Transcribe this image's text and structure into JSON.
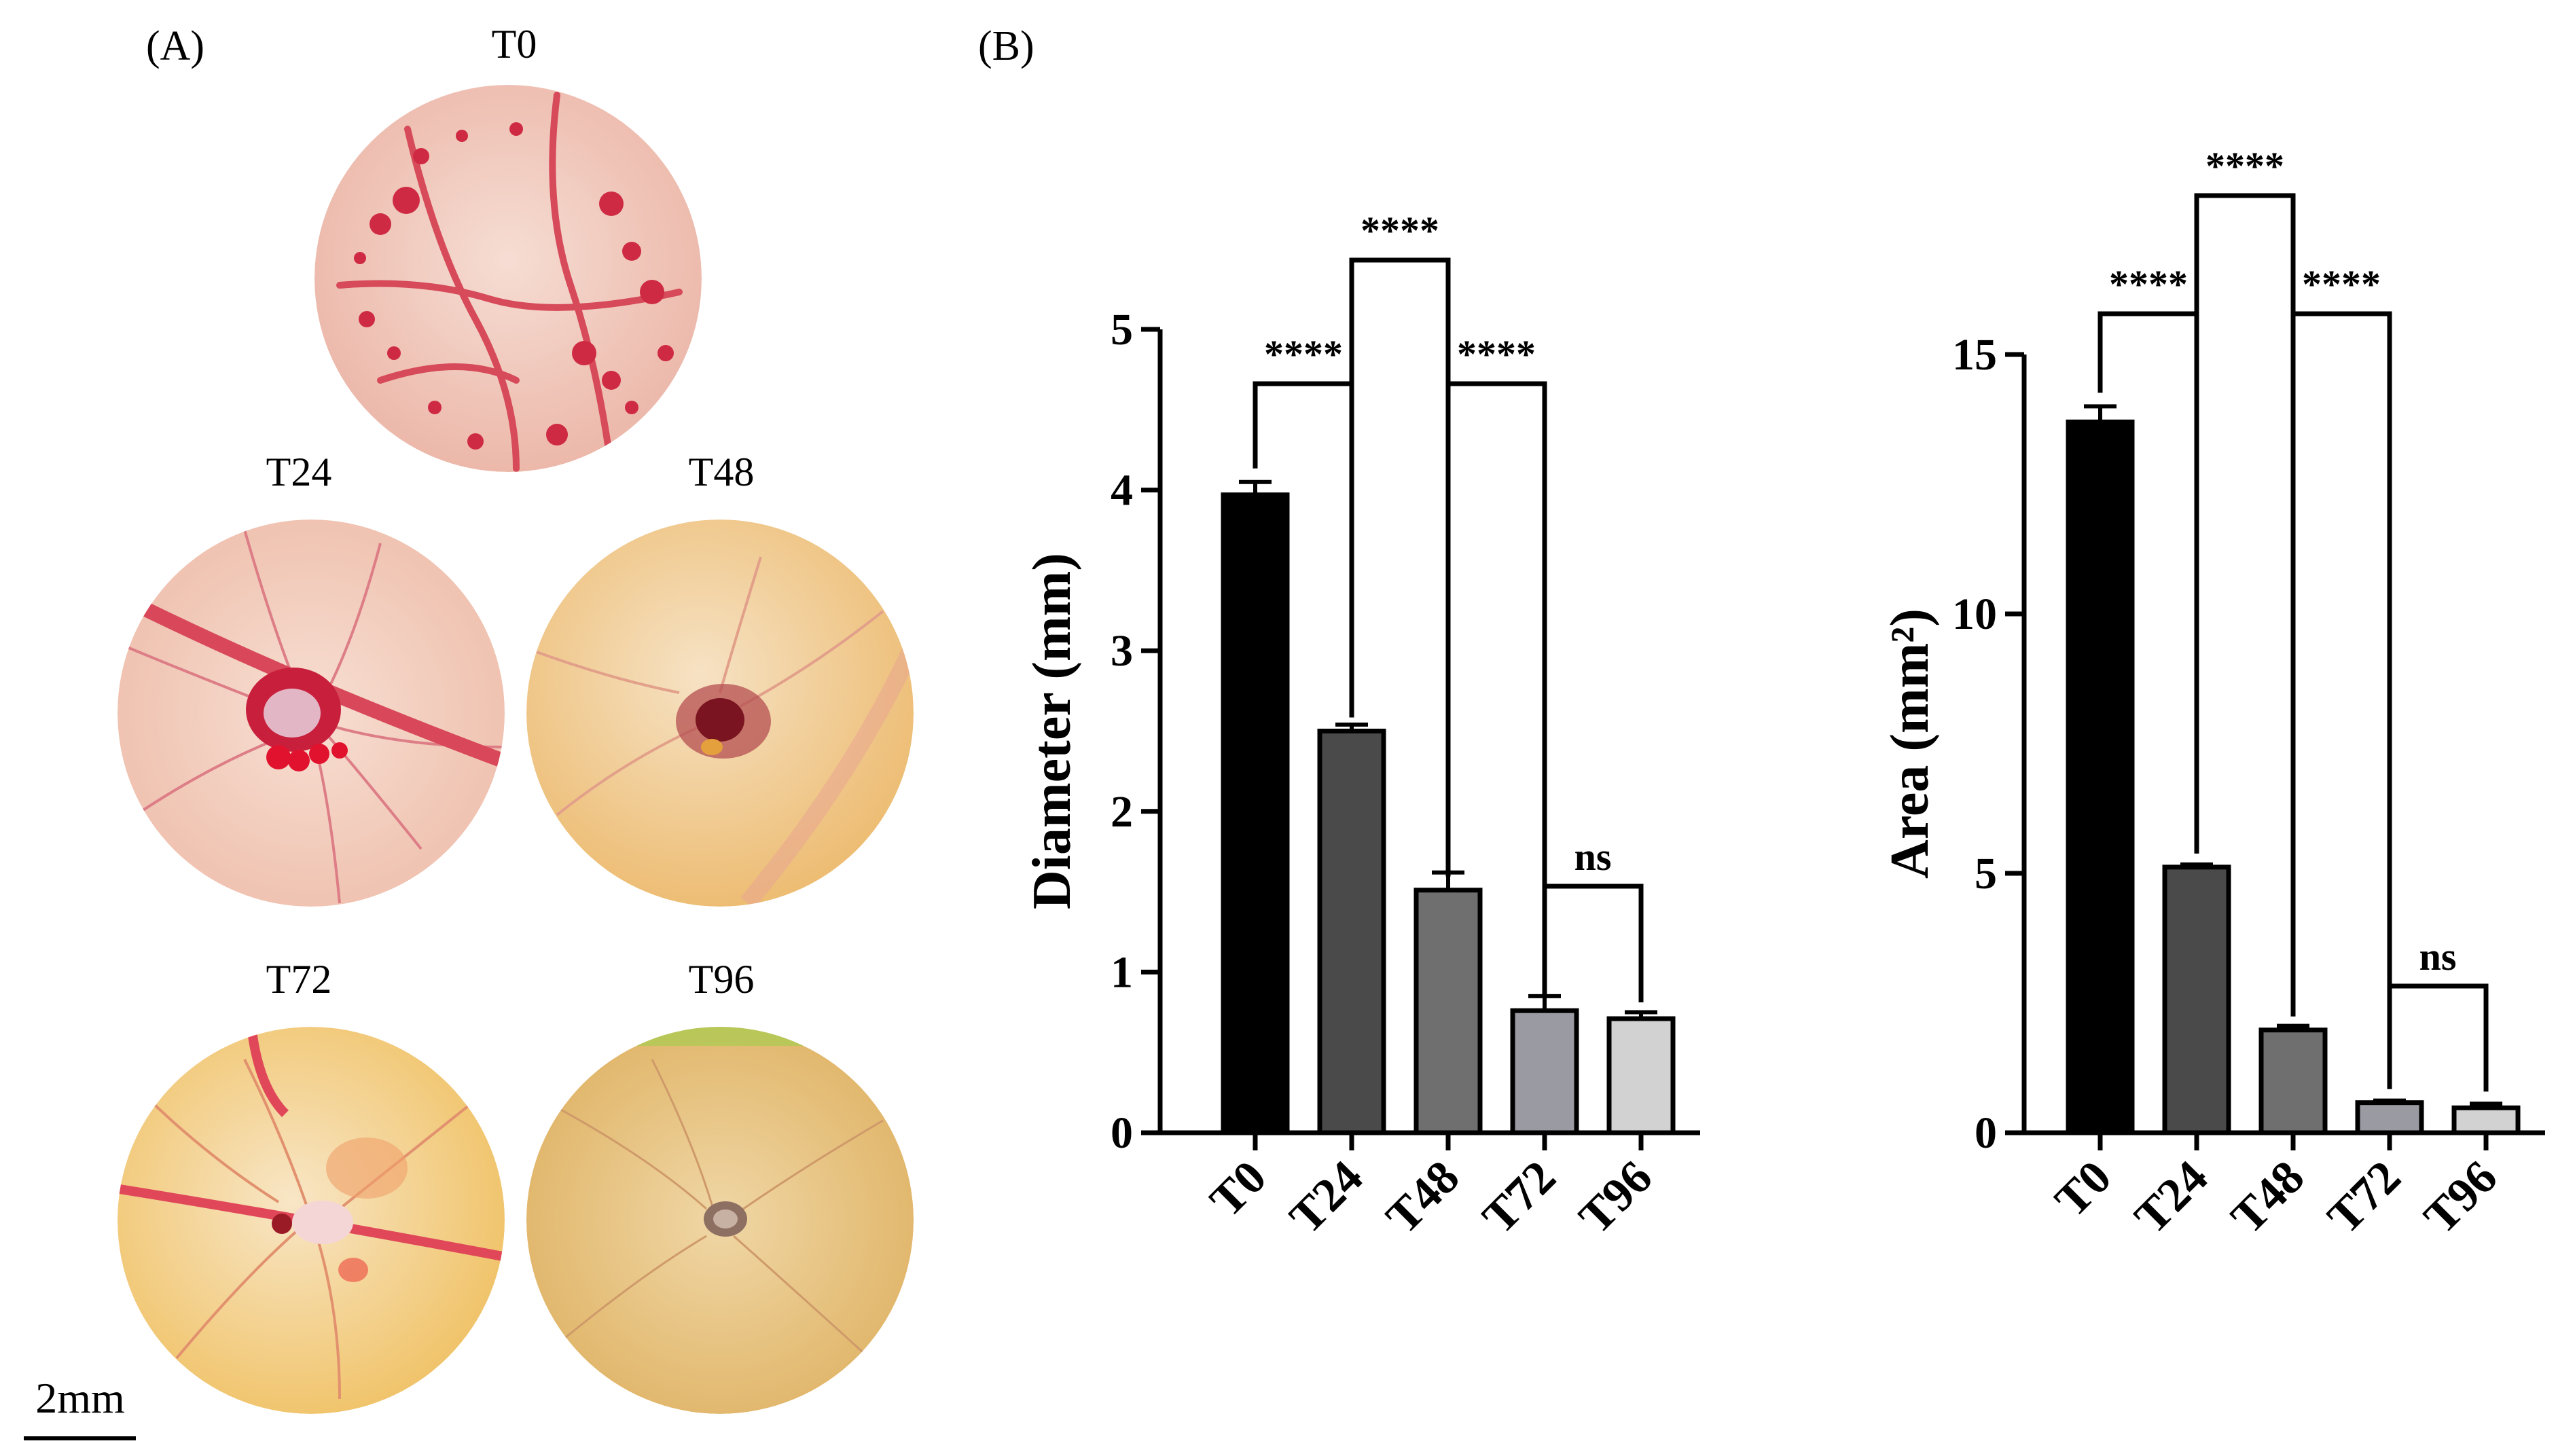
{
  "panels": {
    "a_label": "(A)",
    "b_label": "(B)"
  },
  "photos": [
    {
      "label": "T0",
      "palette": {
        "bg": "#f3cfc3",
        "vessel": "#d2324a"
      }
    },
    {
      "label": "T24",
      "palette": {
        "bg": "#f4d4c4",
        "vessel": "#db3d55"
      }
    },
    {
      "label": "T48",
      "palette": {
        "bg": "#f1d19c",
        "vessel": "#cf6b5c"
      }
    },
    {
      "label": "T72",
      "palette": {
        "bg": "#f3d38c",
        "vessel": "#e0433f"
      }
    },
    {
      "label": "T96",
      "palette": {
        "bg": "#e8c583",
        "vessel": "#c9a070"
      }
    }
  ],
  "scale_bar": {
    "label": "2mm"
  },
  "chart_data": [
    {
      "type": "bar",
      "categories": [
        "T0",
        "T24",
        "T48",
        "T72",
        "T96"
      ],
      "values": [
        3.97,
        2.5,
        1.51,
        0.76,
        0.71
      ],
      "errors": [
        0.08,
        0.04,
        0.11,
        0.09,
        0.04
      ],
      "colors": [
        "#000000",
        "#4a4a4a",
        "#6f6f6f",
        "#9a9aa2",
        "#d2d2d2"
      ],
      "ylabel": "Diameter (mm)",
      "ylim": [
        0,
        5
      ],
      "yticks": [
        "0",
        "1",
        "2",
        "3",
        "4",
        "5"
      ],
      "comparisons": [
        {
          "from": 0,
          "to": 1,
          "label": "****"
        },
        {
          "from": 1,
          "to": 2,
          "label": "****"
        },
        {
          "from": 2,
          "to": 3,
          "label": "****"
        },
        {
          "from": 3,
          "to": 4,
          "label": "ns"
        }
      ]
    },
    {
      "type": "bar",
      "categories": [
        "T0",
        "T24",
        "T48",
        "T72",
        "T96"
      ],
      "values": [
        13.7,
        5.12,
        1.98,
        0.58,
        0.48
      ],
      "errors": [
        0.3,
        0.05,
        0.08,
        0.04,
        0.08
      ],
      "colors": [
        "#000000",
        "#4a4a4a",
        "#6f6f6f",
        "#9a9aa2",
        "#d2d2d2"
      ],
      "ylabel": "Area (mm²)",
      "ylim": [
        0,
        15
      ],
      "yticks": [
        "0",
        "5",
        "10",
        "15"
      ],
      "comparisons": [
        {
          "from": 0,
          "to": 1,
          "label": "****"
        },
        {
          "from": 1,
          "to": 2,
          "label": "****"
        },
        {
          "from": 2,
          "to": 3,
          "label": "****"
        },
        {
          "from": 3,
          "to": 4,
          "label": "ns"
        }
      ]
    }
  ]
}
